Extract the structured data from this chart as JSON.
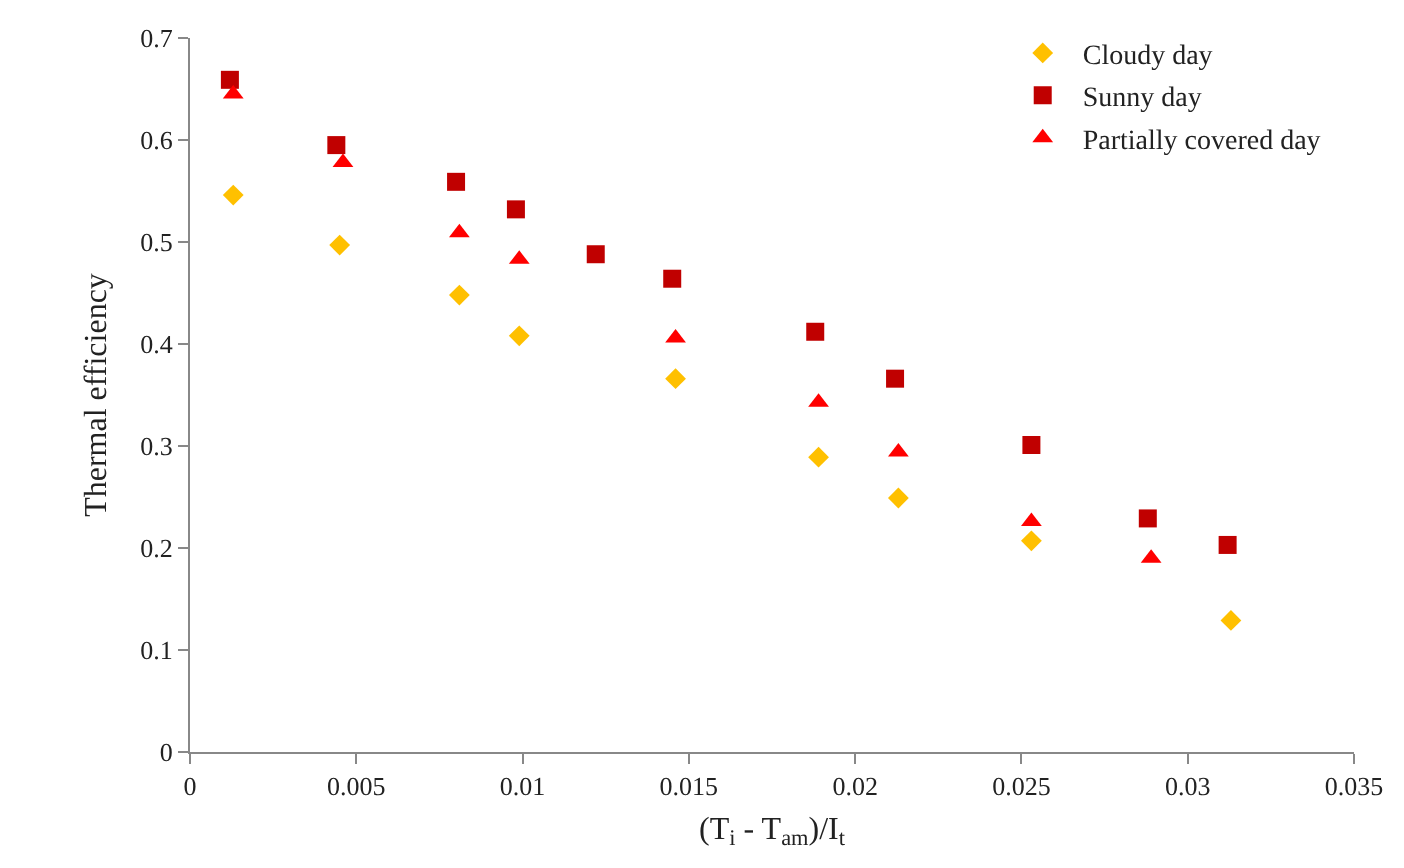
{
  "chart_data": {
    "type": "scatter",
    "xlabel": "(T$_{i}$ - T$_{am}$)/I$_{t}$",
    "ylabel": "Thermal efficiency",
    "xlim": [
      0,
      0.035
    ],
    "xticks": [
      0,
      0.005,
      0.01,
      0.015,
      0.02,
      0.025,
      0.03,
      0.035
    ],
    "ylim": [
      0,
      0.7
    ],
    "yticks": [
      0,
      0.1,
      0.2,
      0.3,
      0.4,
      0.5,
      0.6,
      0.7
    ],
    "grid": false,
    "legend": "top right",
    "series": [
      {
        "name": "Cloudy day",
        "color": "#ffc000",
        "marker": "diamond",
        "x": [
          0.0013,
          0.0045,
          0.0081,
          0.0099,
          0.0146,
          0.0189,
          0.0213,
          0.0253,
          0.0313
        ],
        "values": [
          0.546,
          0.497,
          0.448,
          0.408,
          0.366,
          0.289,
          0.249,
          0.207,
          0.129
        ]
      },
      {
        "name": "Sunny day",
        "color": "#c00000",
        "marker": "square",
        "x": [
          0.0012,
          0.0044,
          0.008,
          0.0098,
          0.0122,
          0.0145,
          0.0188,
          0.0212,
          0.0253,
          0.0288,
          0.0312
        ],
        "values": [
          0.659,
          0.595,
          0.559,
          0.532,
          0.488,
          0.464,
          0.412,
          0.366,
          0.301,
          0.229,
          0.203
        ]
      },
      {
        "name": "Partially covered day",
        "color": "#ff0000",
        "marker": "triangle",
        "x": [
          0.0013,
          0.0046,
          0.0081,
          0.0099,
          0.0146,
          0.0189,
          0.0213,
          0.0253,
          0.0289
        ],
        "values": [
          0.645,
          0.578,
          0.509,
          0.483,
          0.406,
          0.343,
          0.294,
          0.226,
          0.19
        ]
      }
    ]
  }
}
